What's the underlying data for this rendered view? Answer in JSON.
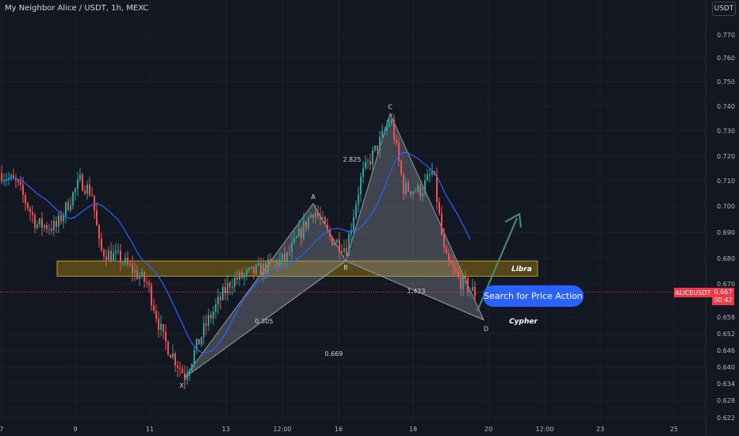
{
  "header": {
    "title": "My Neighbor Alice / USDT, 1h, MEXC",
    "currency": "USDT"
  },
  "cta": {
    "label": "Search for Price Action"
  },
  "price_tag": {
    "symbol": "ALICEUSDT",
    "last": "0.667",
    "countdown": "00:42"
  },
  "colors": {
    "background": "#131722",
    "bull": "#26a69a",
    "bear": "#ef5350",
    "ma": "#2962ff",
    "zone": "#6b5a18",
    "pattern": "#787b86",
    "arrow": "#4c8c7a",
    "cta": "#2962ff",
    "price_line": "#f23645"
  },
  "chart_data": {
    "type": "candlestick",
    "y_axis": {
      "range": [
        0.62,
        0.78
      ],
      "ticks": [
        "0.770",
        "0.760",
        "0.750",
        "0.740",
        "0.730",
        "0.720",
        "0.710",
        "0.700",
        "0.690",
        "0.680",
        "0.670",
        "0.658",
        "0.652",
        "0.646",
        "0.640",
        "0.634",
        "0.628",
        "0.622"
      ]
    },
    "x_axis": {
      "ticks": [
        "7",
        "9",
        "11",
        "13",
        "12:00",
        "16",
        "18",
        "20",
        "12:00",
        "23",
        "25"
      ]
    },
    "harmonic_pattern": {
      "name": "Cypher",
      "points": [
        {
          "label": "X",
          "price": 0.636
        },
        {
          "label": "A",
          "price": 0.701
        },
        {
          "label": "B",
          "price": 0.679
        },
        {
          "label": "C",
          "price": 0.737
        },
        {
          "label": "D",
          "price": 0.657
        }
      ],
      "ratios": [
        "0.305",
        "2.825",
        "0.669",
        "1.423"
      ]
    },
    "zone": {
      "label": "Libra",
      "low": 0.673,
      "high": 0.679
    },
    "last_price": 0.667
  }
}
